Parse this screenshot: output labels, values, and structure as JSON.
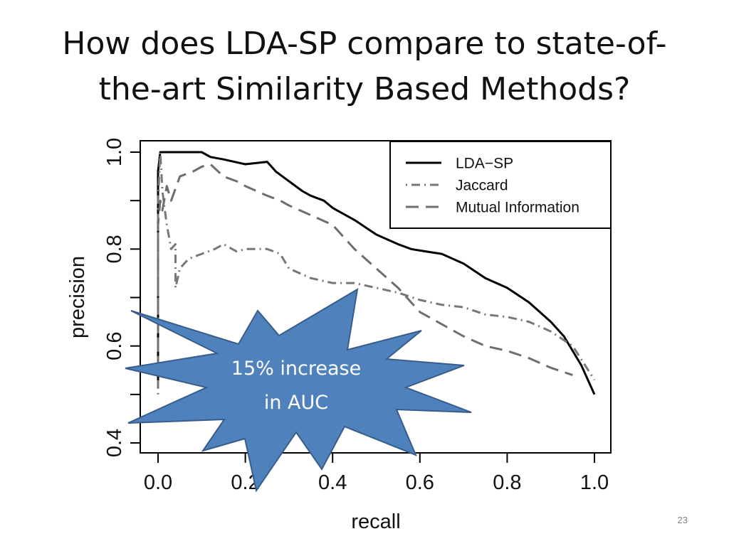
{
  "slide": {
    "title_line1": "How does LDA-SP compare to state-of-",
    "title_line2": "the-art Similarity Based Methods?",
    "page_number": "23"
  },
  "callout": {
    "line1": "15% increase",
    "line2": "in AUC",
    "fill": "#4f81bd",
    "stroke": "#385d8a"
  },
  "chart_data": {
    "type": "line",
    "xlabel": "recall",
    "ylabel": "precision",
    "xlim": [
      0.0,
      1.0
    ],
    "ylim": [
      0.4,
      1.0
    ],
    "x_ticks": [
      "0.0",
      "0.2",
      "0.4",
      "0.6",
      "0.8",
      "1.0"
    ],
    "y_ticks": [
      "0.4",
      "0.6",
      "0.8",
      "1.0"
    ],
    "x_tick_values": [
      0.0,
      0.2,
      0.4,
      0.6,
      0.8,
      1.0
    ],
    "y_tick_values": [
      0.4,
      0.6,
      0.8,
      1.0
    ],
    "legend_position": "top-right",
    "grid": false,
    "series": [
      {
        "name": "LDA−SP",
        "style": "solid",
        "color": "#000000",
        "x": [
          0.0,
          0.0,
          0.0,
          0.005,
          0.02,
          0.05,
          0.1,
          0.12,
          0.15,
          0.2,
          0.23,
          0.25,
          0.27,
          0.3,
          0.33,
          0.35,
          0.38,
          0.4,
          0.45,
          0.5,
          0.55,
          0.58,
          0.6,
          0.65,
          0.7,
          0.75,
          0.8,
          0.85,
          0.9,
          0.93,
          0.95,
          0.97,
          0.99,
          1.0
        ],
        "y": [
          0.52,
          0.8,
          0.96,
          1.0,
          1.0,
          1.0,
          1.0,
          0.99,
          0.985,
          0.975,
          0.978,
          0.98,
          0.96,
          0.94,
          0.92,
          0.91,
          0.9,
          0.885,
          0.86,
          0.83,
          0.81,
          0.8,
          0.797,
          0.79,
          0.77,
          0.74,
          0.72,
          0.69,
          0.65,
          0.62,
          0.59,
          0.56,
          0.52,
          0.5
        ]
      },
      {
        "name": "Jaccard",
        "style": "dotdash",
        "color": "#777777",
        "x": [
          0.0,
          0.0,
          0.005,
          0.01,
          0.02,
          0.03,
          0.04,
          0.04,
          0.05,
          0.07,
          0.1,
          0.13,
          0.15,
          0.18,
          0.2,
          0.25,
          0.28,
          0.3,
          0.35,
          0.4,
          0.45,
          0.5,
          0.55,
          0.6,
          0.65,
          0.7,
          0.75,
          0.8,
          0.85,
          0.9,
          0.95,
          1.0
        ],
        "y": [
          0.5,
          0.9,
          1.0,
          0.92,
          0.85,
          0.8,
          0.81,
          0.72,
          0.76,
          0.78,
          0.79,
          0.8,
          0.81,
          0.795,
          0.8,
          0.8,
          0.79,
          0.76,
          0.74,
          0.73,
          0.73,
          0.72,
          0.71,
          0.695,
          0.685,
          0.68,
          0.665,
          0.66,
          0.65,
          0.63,
          0.6,
          0.53
        ]
      },
      {
        "name": "Mutual Information",
        "style": "dashed",
        "color": "#6e6e6e",
        "x": [
          0.0,
          0.0,
          0.005,
          0.01,
          0.02,
          0.03,
          0.05,
          0.08,
          0.1,
          0.12,
          0.15,
          0.18,
          0.2,
          0.25,
          0.28,
          0.3,
          0.35,
          0.4,
          0.45,
          0.5,
          0.55,
          0.6,
          0.65,
          0.7,
          0.75,
          0.8,
          0.85,
          0.9,
          0.95
        ],
        "y": [
          0.55,
          0.85,
          0.9,
          0.88,
          0.93,
          0.9,
          0.95,
          0.96,
          0.97,
          0.975,
          0.95,
          0.94,
          0.93,
          0.91,
          0.9,
          0.89,
          0.87,
          0.85,
          0.8,
          0.76,
          0.72,
          0.67,
          0.645,
          0.62,
          0.6,
          0.59,
          0.575,
          0.555,
          0.54
        ]
      }
    ]
  }
}
